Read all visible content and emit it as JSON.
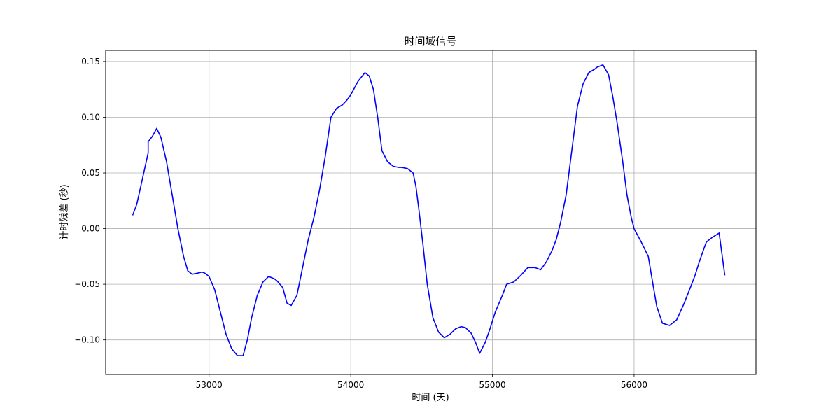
{
  "chart_data": {
    "type": "line",
    "title": "时间域信号",
    "xlabel": "时间 (天)",
    "ylabel": "计时残差 (秒)",
    "xlim": [
      52270,
      56860
    ],
    "ylim": [
      -0.131,
      0.16
    ],
    "xticks": [
      53000,
      54000,
      55000,
      56000
    ],
    "yticks": [
      -0.1,
      -0.05,
      0.0,
      0.05,
      0.1,
      0.15
    ],
    "xtick_labels": [
      "53000",
      "54000",
      "55000",
      "56000"
    ],
    "ytick_labels": [
      "−0.10",
      "−0.05",
      "0.00",
      "0.05",
      "0.10",
      "0.15"
    ],
    "grid": true,
    "series": [
      {
        "color": "#0000ff",
        "x": [
          52460,
          52490,
          52530,
          52570,
          52570,
          52600,
          52630,
          52660,
          52700,
          52740,
          52780,
          52820,
          52850,
          52880,
          52920,
          52950,
          52970,
          53000,
          53040,
          53080,
          53120,
          53160,
          53200,
          53240,
          53270,
          53300,
          53340,
          53380,
          53420,
          53460,
          53480,
          53520,
          53550,
          53580,
          53620,
          53660,
          53700,
          53740,
          53780,
          53820,
          53860,
          53900,
          53940,
          53970,
          54000,
          54050,
          54100,
          54130,
          54160,
          54190,
          54220,
          54260,
          54300,
          54340,
          54360,
          54400,
          54440,
          54460,
          54480,
          54510,
          54540,
          54580,
          54620,
          54660,
          54700,
          54740,
          54780,
          54810,
          54850,
          54880,
          54910,
          54950,
          54980,
          55020,
          55070,
          55100,
          55150,
          55200,
          55250,
          55300,
          55340,
          55380,
          55420,
          55450,
          55480,
          55520,
          55560,
          55600,
          55640,
          55680,
          55720,
          55740,
          55780,
          55820,
          55850,
          55880,
          55920,
          55950,
          55980,
          56000,
          56050,
          56100,
          56130,
          56160,
          56200,
          56250,
          56300,
          56350,
          56400,
          56430,
          56460,
          56490,
          56510,
          56550,
          56600,
          56640
        ],
        "y": [
          0.012,
          0.022,
          0.045,
          0.068,
          0.078,
          0.083,
          0.09,
          0.082,
          0.06,
          0.03,
          0.0,
          -0.025,
          -0.038,
          -0.041,
          -0.04,
          -0.039,
          -0.04,
          -0.043,
          -0.055,
          -0.075,
          -0.095,
          -0.108,
          -0.114,
          -0.114,
          -0.1,
          -0.08,
          -0.06,
          -0.048,
          -0.043,
          -0.045,
          -0.047,
          -0.053,
          -0.067,
          -0.069,
          -0.06,
          -0.035,
          -0.01,
          0.01,
          0.035,
          0.065,
          0.1,
          0.108,
          0.111,
          0.115,
          0.12,
          0.132,
          0.14,
          0.137,
          0.125,
          0.1,
          0.07,
          0.06,
          0.056,
          0.055,
          0.055,
          0.054,
          0.05,
          0.038,
          0.018,
          -0.015,
          -0.05,
          -0.08,
          -0.093,
          -0.098,
          -0.095,
          -0.09,
          -0.088,
          -0.089,
          -0.094,
          -0.102,
          -0.112,
          -0.102,
          -0.091,
          -0.075,
          -0.06,
          -0.05,
          -0.048,
          -0.042,
          -0.035,
          -0.035,
          -0.037,
          -0.03,
          -0.02,
          -0.01,
          0.005,
          0.03,
          0.07,
          0.11,
          0.13,
          0.14,
          0.143,
          0.145,
          0.147,
          0.138,
          0.118,
          0.095,
          0.06,
          0.03,
          0.01,
          0.0,
          -0.012,
          -0.025,
          -0.048,
          -0.07,
          -0.085,
          -0.087,
          -0.082,
          -0.068,
          -0.052,
          -0.042,
          -0.03,
          -0.019,
          -0.012,
          -0.008,
          -0.004,
          -0.042
        ]
      }
    ]
  }
}
